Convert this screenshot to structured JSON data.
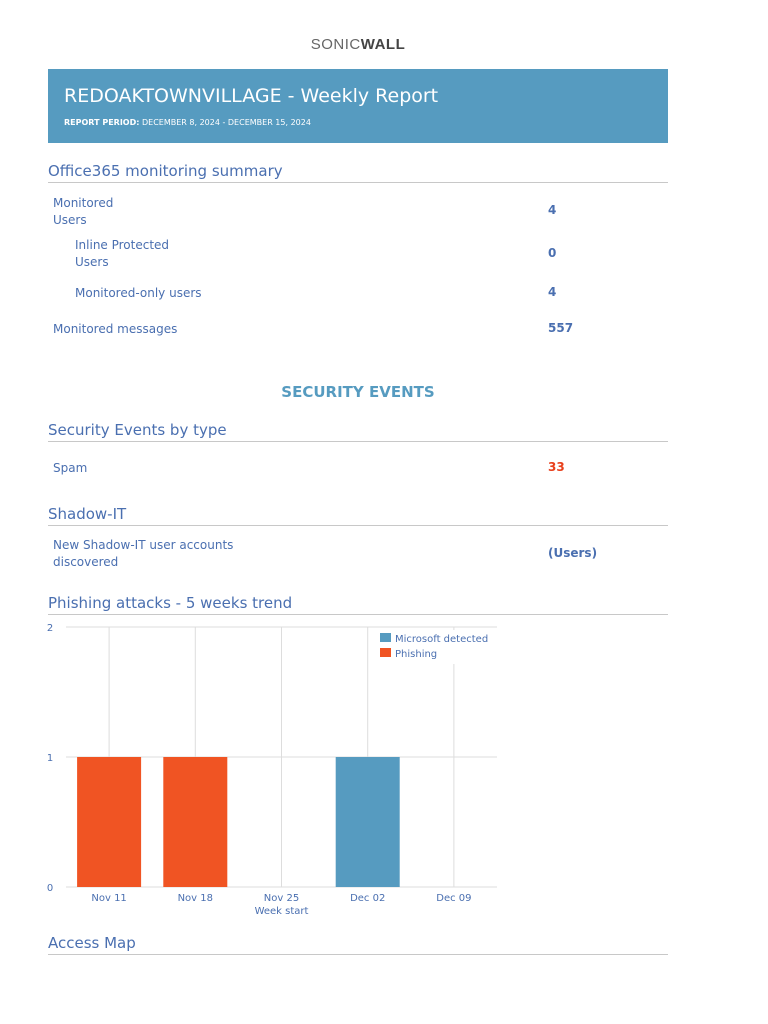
{
  "logo": {
    "text_a": "SONIC",
    "text_b": "WALL"
  },
  "header": {
    "title": "REDOAKTOWNVILLAGE - Weekly Report",
    "period_label": "REPORT PERIOD:",
    "period_value": "DECEMBER 8, 2024 - DECEMBER 15, 2024"
  },
  "summary": {
    "title": "Office365 monitoring summary",
    "rows": [
      {
        "label": "Monitored\nUsers",
        "value": "4"
      },
      {
        "label": "Inline Protected\nUsers",
        "value": "0"
      },
      {
        "label": "Monitored-only users",
        "value": "4"
      },
      {
        "label": "Monitored messages",
        "value": "557"
      }
    ]
  },
  "security_title": "SECURITY EVENTS",
  "events": {
    "title": "Security Events by type",
    "rows": [
      {
        "label": "Spam",
        "value": "33"
      }
    ]
  },
  "shadow": {
    "title": "Shadow-IT",
    "label": "New Shadow-IT user accounts\ndiscovered",
    "value": "(Users)"
  },
  "phishing_title": "Phishing attacks - 5 weeks trend",
  "access_title": "Access Map",
  "colors": {
    "blue": "#569bc0",
    "orange": "#f05423",
    "spam": "#e8401c"
  },
  "chart_data": {
    "type": "bar",
    "categories": [
      "Nov 11",
      "Nov 18",
      "Nov 25",
      "Dec 02",
      "Dec 09"
    ],
    "series": [
      {
        "name": "Microsoft detected",
        "values": [
          0,
          0,
          0,
          1,
          0
        ],
        "color": "#569bc0"
      },
      {
        "name": "Phishing",
        "values": [
          1,
          1,
          0,
          0,
          0
        ],
        "color": "#f05423"
      }
    ],
    "xlabel": "Week start",
    "ylabel": "",
    "ylim": [
      0,
      2
    ],
    "yticks": [
      0,
      1,
      2
    ],
    "grid": true,
    "legend": "top-right"
  }
}
